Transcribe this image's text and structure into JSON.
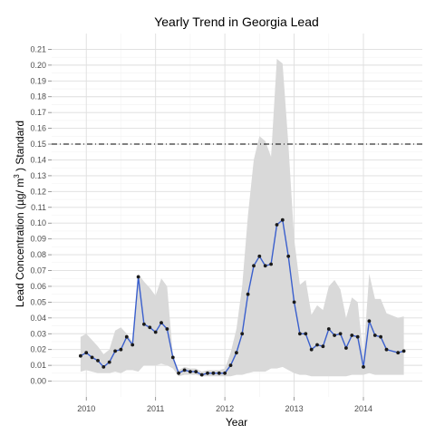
{
  "chart_data": {
    "type": "line",
    "title": "Yearly Trend in Georgia Lead",
    "xlabel": "Year",
    "ylabel_parts": {
      "before": "Lead Concentration (µg/ m",
      "superscript": "3",
      "after": " ) Standard"
    },
    "xlim": [
      2009.5,
      2014.85
    ],
    "ylim": [
      -0.01,
      0.22
    ],
    "x_ticks": [
      2010,
      2011,
      2012,
      2013,
      2014
    ],
    "x_tick_labels": [
      "2010",
      "2011",
      "2012",
      "2013",
      "2014"
    ],
    "y_ticks": [
      0.0,
      0.01,
      0.02,
      0.03,
      0.04,
      0.05,
      0.06,
      0.07,
      0.08,
      0.09,
      0.1,
      0.11,
      0.12,
      0.13,
      0.14,
      0.15,
      0.16,
      0.17,
      0.18,
      0.19,
      0.2,
      0.21
    ],
    "y_tick_labels": [
      "0.00",
      "0.01",
      "0.02",
      "0.03",
      "0.04",
      "0.05",
      "0.06",
      "0.07",
      "0.08",
      "0.09",
      "0.10",
      "0.11",
      "0.12",
      "0.13",
      "0.14",
      "0.15",
      "0.16",
      "0.17",
      "0.18",
      "0.19",
      "0.20",
      "0.21"
    ],
    "grid": true,
    "standard_line": {
      "y": 0.15,
      "style": "dash-dot",
      "color": "#000000"
    },
    "series": [
      {
        "color": "#3a5fcd",
        "marker_color": "#1a1a1a",
        "x": [
          2009.917,
          2010.0,
          2010.083,
          2010.167,
          2010.25,
          2010.333,
          2010.417,
          2010.5,
          2010.583,
          2010.667,
          2010.75,
          2010.833,
          2010.917,
          2011.0,
          2011.083,
          2011.167,
          2011.25,
          2011.333,
          2011.417,
          2011.5,
          2011.583,
          2011.667,
          2011.75,
          2011.833,
          2011.917,
          2012.0,
          2012.083,
          2012.167,
          2012.25,
          2012.333,
          2012.417,
          2012.5,
          2012.583,
          2012.667,
          2012.75,
          2012.833,
          2012.917,
          2013.0,
          2013.083,
          2013.167,
          2013.25,
          2013.333,
          2013.417,
          2013.5,
          2013.583,
          2013.667,
          2013.75,
          2013.833,
          2013.917,
          2014.0,
          2014.083,
          2014.167,
          2014.25,
          2014.333,
          2014.5,
          2014.583
        ],
        "y": [
          0.016,
          0.018,
          0.015,
          0.013,
          0.009,
          0.012,
          0.019,
          0.02,
          0.028,
          0.023,
          0.066,
          0.036,
          0.034,
          0.031,
          0.037,
          0.033,
          0.015,
          0.005,
          0.007,
          0.006,
          0.006,
          0.004,
          0.005,
          0.005,
          0.005,
          0.005,
          0.01,
          0.018,
          0.03,
          0.055,
          0.073,
          0.079,
          0.073,
          0.074,
          0.099,
          0.102,
          0.079,
          0.05,
          0.03,
          0.03,
          0.02,
          0.023,
          0.022,
          0.033,
          0.029,
          0.03,
          0.021,
          0.029,
          0.028,
          0.009,
          0.038,
          0.029,
          0.028,
          0.02,
          0.018,
          0.019
        ]
      }
    ],
    "band": {
      "color": "#d9d9d9",
      "x": [
        2009.917,
        2010.0,
        2010.083,
        2010.167,
        2010.25,
        2010.333,
        2010.417,
        2010.5,
        2010.583,
        2010.667,
        2010.75,
        2010.833,
        2010.917,
        2011.0,
        2011.083,
        2011.167,
        2011.25,
        2011.333,
        2011.417,
        2011.5,
        2011.583,
        2011.667,
        2011.75,
        2011.833,
        2011.917,
        2012.0,
        2012.083,
        2012.167,
        2012.25,
        2012.333,
        2012.417,
        2012.5,
        2012.583,
        2012.667,
        2012.75,
        2012.833,
        2012.917,
        2013.0,
        2013.083,
        2013.167,
        2013.25,
        2013.333,
        2013.417,
        2013.5,
        2013.583,
        2013.667,
        2013.75,
        2013.833,
        2013.917,
        2014.0,
        2014.083,
        2014.167,
        2014.25,
        2014.333,
        2014.5,
        2014.583
      ],
      "upper": [
        0.028,
        0.03,
        0.026,
        0.022,
        0.017,
        0.02,
        0.032,
        0.034,
        0.03,
        0.025,
        0.068,
        0.063,
        0.059,
        0.054,
        0.065,
        0.06,
        0.016,
        0.007,
        0.009,
        0.008,
        0.008,
        0.006,
        0.007,
        0.007,
        0.007,
        0.008,
        0.018,
        0.033,
        0.06,
        0.105,
        0.14,
        0.155,
        0.152,
        0.142,
        0.204,
        0.201,
        0.15,
        0.09,
        0.061,
        0.064,
        0.042,
        0.048,
        0.045,
        0.06,
        0.064,
        0.058,
        0.04,
        0.053,
        0.05,
        0.015,
        0.068,
        0.052,
        0.052,
        0.043,
        0.04,
        0.041
      ],
      "lower": [
        0.006,
        0.007,
        0.006,
        0.005,
        0.005,
        0.005,
        0.006,
        0.005,
        0.007,
        0.007,
        0.006,
        0.01,
        0.01,
        0.01,
        0.011,
        0.01,
        0.008,
        0.003,
        0.004,
        0.004,
        0.004,
        0.003,
        0.003,
        0.003,
        0.003,
        0.003,
        0.003,
        0.004,
        0.004,
        0.005,
        0.006,
        0.006,
        0.006,
        0.008,
        0.008,
        0.009,
        0.007,
        0.005,
        0.004,
        0.004,
        0.003,
        0.003,
        0.003,
        0.003,
        0.003,
        0.003,
        0.003,
        0.004,
        0.004,
        0.004,
        0.005,
        0.004,
        0.004,
        0.004,
        0.004,
        0.004
      ]
    }
  }
}
